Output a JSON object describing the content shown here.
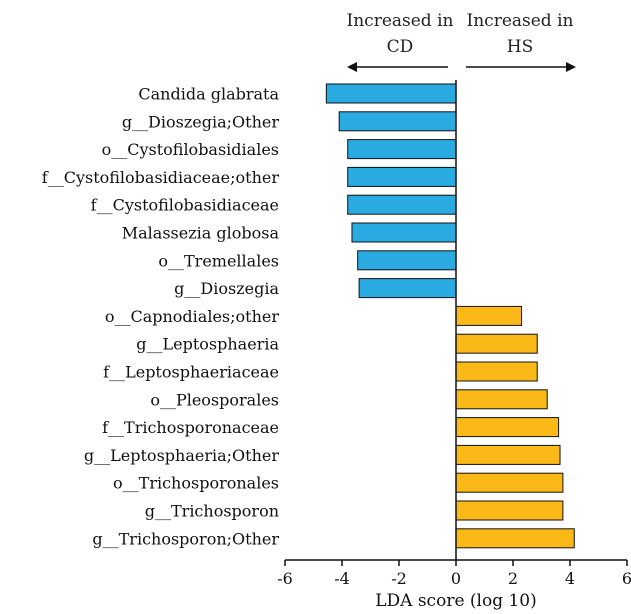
{
  "header": {
    "left_label": "Increased in\nCD",
    "right_label": "Increased in\nHS"
  },
  "chart_data": {
    "type": "bar",
    "orientation": "horizontal",
    "xlabel": "LDA score (log 10)",
    "xlim": [
      -6,
      6
    ],
    "xticks": [
      -6,
      -4,
      -2,
      0,
      2,
      4,
      6
    ],
    "grid": false,
    "groups": [
      {
        "name": "CD",
        "color": "#29abe2"
      },
      {
        "name": "HS",
        "color": "#fbb917"
      }
    ],
    "categories": [
      "Candida glabrata",
      "g__Dioszegia;Other",
      "o__Cystofilobasidiales",
      "f__Cystofilobasidiaceae;other",
      "f__Cystofilobasidiaceae",
      "Malassezia globosa",
      "o__Tremellales",
      "g__Dioszegia",
      "o__Capnodiales;other",
      "g__Leptosphaeria",
      "f__Leptosphaeriaceae",
      "o__Pleosporales",
      "f__Trichosporonaceae",
      "g__Leptosphaeria;Other",
      "o__Trichosporonales",
      "g__Trichosporon",
      "g__Trichosporon;Other"
    ],
    "values": [
      -4.55,
      -4.1,
      -3.8,
      -3.8,
      -3.8,
      -3.65,
      -3.45,
      -3.4,
      2.3,
      2.85,
      2.85,
      3.2,
      3.6,
      3.65,
      3.75,
      3.75,
      4.15
    ],
    "group_of_bar": [
      "CD",
      "CD",
      "CD",
      "CD",
      "CD",
      "CD",
      "CD",
      "CD",
      "HS",
      "HS",
      "HS",
      "HS",
      "HS",
      "HS",
      "HS",
      "HS",
      "HS"
    ]
  }
}
